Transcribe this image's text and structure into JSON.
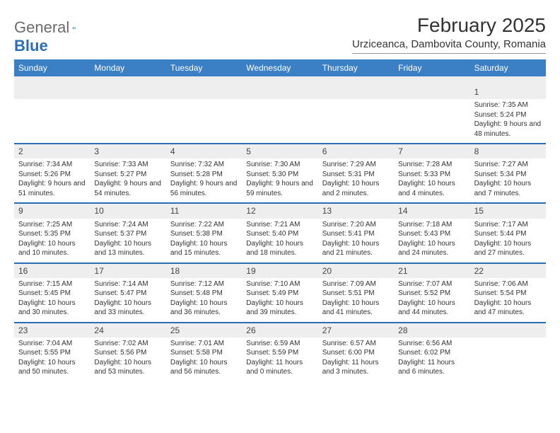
{
  "logo": {
    "text1": "General",
    "text2": "Blue"
  },
  "title": "February 2025",
  "location": "Urziceanca, Dambovita County, Romania",
  "colors": {
    "header_bg": "#3b7fc4",
    "stripe_bg": "#eeeeee",
    "week_border": "#2a6fb5",
    "text": "#333333"
  },
  "weekdays": [
    "Sunday",
    "Monday",
    "Tuesday",
    "Wednesday",
    "Thursday",
    "Friday",
    "Saturday"
  ],
  "weeks": [
    [
      null,
      null,
      null,
      null,
      null,
      null,
      {
        "n": "1",
        "sr": "Sunrise: 7:35 AM",
        "ss": "Sunset: 5:24 PM",
        "dl": "Daylight: 9 hours and 48 minutes."
      }
    ],
    [
      {
        "n": "2",
        "sr": "Sunrise: 7:34 AM",
        "ss": "Sunset: 5:26 PM",
        "dl": "Daylight: 9 hours and 51 minutes."
      },
      {
        "n": "3",
        "sr": "Sunrise: 7:33 AM",
        "ss": "Sunset: 5:27 PM",
        "dl": "Daylight: 9 hours and 54 minutes."
      },
      {
        "n": "4",
        "sr": "Sunrise: 7:32 AM",
        "ss": "Sunset: 5:28 PM",
        "dl": "Daylight: 9 hours and 56 minutes."
      },
      {
        "n": "5",
        "sr": "Sunrise: 7:30 AM",
        "ss": "Sunset: 5:30 PM",
        "dl": "Daylight: 9 hours and 59 minutes."
      },
      {
        "n": "6",
        "sr": "Sunrise: 7:29 AM",
        "ss": "Sunset: 5:31 PM",
        "dl": "Daylight: 10 hours and 2 minutes."
      },
      {
        "n": "7",
        "sr": "Sunrise: 7:28 AM",
        "ss": "Sunset: 5:33 PM",
        "dl": "Daylight: 10 hours and 4 minutes."
      },
      {
        "n": "8",
        "sr": "Sunrise: 7:27 AM",
        "ss": "Sunset: 5:34 PM",
        "dl": "Daylight: 10 hours and 7 minutes."
      }
    ],
    [
      {
        "n": "9",
        "sr": "Sunrise: 7:25 AM",
        "ss": "Sunset: 5:35 PM",
        "dl": "Daylight: 10 hours and 10 minutes."
      },
      {
        "n": "10",
        "sr": "Sunrise: 7:24 AM",
        "ss": "Sunset: 5:37 PM",
        "dl": "Daylight: 10 hours and 13 minutes."
      },
      {
        "n": "11",
        "sr": "Sunrise: 7:22 AM",
        "ss": "Sunset: 5:38 PM",
        "dl": "Daylight: 10 hours and 15 minutes."
      },
      {
        "n": "12",
        "sr": "Sunrise: 7:21 AM",
        "ss": "Sunset: 5:40 PM",
        "dl": "Daylight: 10 hours and 18 minutes."
      },
      {
        "n": "13",
        "sr": "Sunrise: 7:20 AM",
        "ss": "Sunset: 5:41 PM",
        "dl": "Daylight: 10 hours and 21 minutes."
      },
      {
        "n": "14",
        "sr": "Sunrise: 7:18 AM",
        "ss": "Sunset: 5:43 PM",
        "dl": "Daylight: 10 hours and 24 minutes."
      },
      {
        "n": "15",
        "sr": "Sunrise: 7:17 AM",
        "ss": "Sunset: 5:44 PM",
        "dl": "Daylight: 10 hours and 27 minutes."
      }
    ],
    [
      {
        "n": "16",
        "sr": "Sunrise: 7:15 AM",
        "ss": "Sunset: 5:45 PM",
        "dl": "Daylight: 10 hours and 30 minutes."
      },
      {
        "n": "17",
        "sr": "Sunrise: 7:14 AM",
        "ss": "Sunset: 5:47 PM",
        "dl": "Daylight: 10 hours and 33 minutes."
      },
      {
        "n": "18",
        "sr": "Sunrise: 7:12 AM",
        "ss": "Sunset: 5:48 PM",
        "dl": "Daylight: 10 hours and 36 minutes."
      },
      {
        "n": "19",
        "sr": "Sunrise: 7:10 AM",
        "ss": "Sunset: 5:49 PM",
        "dl": "Daylight: 10 hours and 39 minutes."
      },
      {
        "n": "20",
        "sr": "Sunrise: 7:09 AM",
        "ss": "Sunset: 5:51 PM",
        "dl": "Daylight: 10 hours and 41 minutes."
      },
      {
        "n": "21",
        "sr": "Sunrise: 7:07 AM",
        "ss": "Sunset: 5:52 PM",
        "dl": "Daylight: 10 hours and 44 minutes."
      },
      {
        "n": "22",
        "sr": "Sunrise: 7:06 AM",
        "ss": "Sunset: 5:54 PM",
        "dl": "Daylight: 10 hours and 47 minutes."
      }
    ],
    [
      {
        "n": "23",
        "sr": "Sunrise: 7:04 AM",
        "ss": "Sunset: 5:55 PM",
        "dl": "Daylight: 10 hours and 50 minutes."
      },
      {
        "n": "24",
        "sr": "Sunrise: 7:02 AM",
        "ss": "Sunset: 5:56 PM",
        "dl": "Daylight: 10 hours and 53 minutes."
      },
      {
        "n": "25",
        "sr": "Sunrise: 7:01 AM",
        "ss": "Sunset: 5:58 PM",
        "dl": "Daylight: 10 hours and 56 minutes."
      },
      {
        "n": "26",
        "sr": "Sunrise: 6:59 AM",
        "ss": "Sunset: 5:59 PM",
        "dl": "Daylight: 11 hours and 0 minutes."
      },
      {
        "n": "27",
        "sr": "Sunrise: 6:57 AM",
        "ss": "Sunset: 6:00 PM",
        "dl": "Daylight: 11 hours and 3 minutes."
      },
      {
        "n": "28",
        "sr": "Sunrise: 6:56 AM",
        "ss": "Sunset: 6:02 PM",
        "dl": "Daylight: 11 hours and 6 minutes."
      },
      null
    ]
  ]
}
